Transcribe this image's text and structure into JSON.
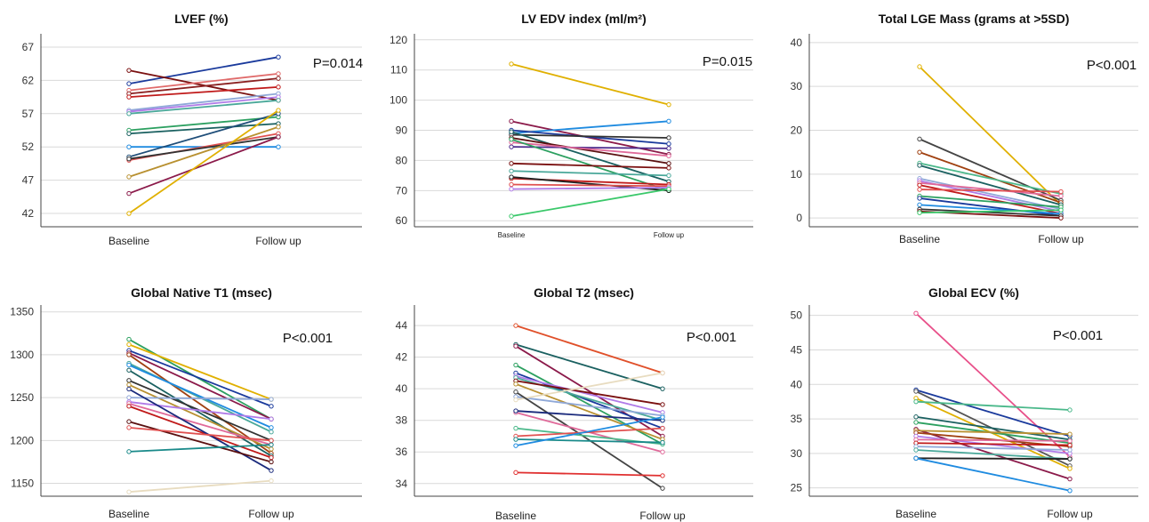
{
  "chart_data": [
    {
      "type": "line",
      "title": "LVEF (%)",
      "categories": [
        "Baseline",
        "Follow up"
      ],
      "ylim": [
        40,
        69
      ],
      "yticks": [
        42,
        47,
        52,
        57,
        62,
        67
      ],
      "grid": true,
      "annotation": "P=0.014",
      "series": [
        {
          "color": "#1a3a9c",
          "values": [
            61.5,
            65.5
          ]
        },
        {
          "color": "#7a1010",
          "values": [
            63.5,
            59.0
          ]
        },
        {
          "color": "#e06a6a",
          "values": [
            60.5,
            63.0
          ]
        },
        {
          "color": "#8b2020",
          "values": [
            60.0,
            62.3
          ]
        },
        {
          "color": "#c01a1a",
          "values": [
            59.5,
            61.0
          ]
        },
        {
          "color": "#8fa8d8",
          "values": [
            57.5,
            60.0
          ]
        },
        {
          "color": "#b07be8",
          "values": [
            57.3,
            59.5
          ]
        },
        {
          "color": "#4aa89a",
          "values": [
            57.0,
            59.0
          ]
        },
        {
          "color": "#2ca060",
          "values": [
            54.5,
            56.5
          ]
        },
        {
          "color": "#1a6060",
          "values": [
            54.0,
            55.5
          ]
        },
        {
          "color": "#1f8be0",
          "values": [
            52.0,
            52.0
          ]
        },
        {
          "color": "#e05050",
          "values": [
            50.0,
            54.0
          ]
        },
        {
          "color": "#1f4e79",
          "values": [
            50.5,
            57.0
          ]
        },
        {
          "color": "#333333",
          "values": [
            50.2,
            53.5
          ]
        },
        {
          "color": "#b89030",
          "values": [
            47.5,
            55.0
          ]
        },
        {
          "color": "#8b1a4a",
          "values": [
            45.0,
            53.5
          ]
        },
        {
          "color": "#e0b000",
          "values": [
            42.0,
            57.5
          ]
        }
      ]
    },
    {
      "type": "line",
      "title": "LV EDV index (ml/m²)",
      "categories": [
        "Baseline",
        "Follow up"
      ],
      "ylim": [
        58,
        122
      ],
      "yticks": [
        60,
        70,
        80,
        90,
        100,
        110,
        120
      ],
      "grid": true,
      "annotation": "P=0.015",
      "series": [
        {
          "color": "#e0b000",
          "values": [
            112.0,
            98.5
          ]
        },
        {
          "color": "#8b1a4a",
          "values": [
            93.0,
            82.0
          ]
        },
        {
          "color": "#1f8be0",
          "values": [
            89.0,
            93.0
          ]
        },
        {
          "color": "#1a3a9c",
          "values": [
            90.0,
            85.5
          ]
        },
        {
          "color": "#333333",
          "values": [
            88.5,
            87.5
          ]
        },
        {
          "color": "#1a6060",
          "values": [
            89.5,
            73.0
          ]
        },
        {
          "color": "#5a1010",
          "values": [
            87.5,
            79.0
          ]
        },
        {
          "color": "#4b2a8c",
          "values": [
            84.5,
            84.0
          ]
        },
        {
          "color": "#e06a9a",
          "values": [
            86.0,
            81.5
          ]
        },
        {
          "color": "#2ca060",
          "values": [
            87.0,
            70.0
          ]
        },
        {
          "color": "#7a1010",
          "values": [
            79.0,
            77.5
          ]
        },
        {
          "color": "#4aa89a",
          "values": [
            76.5,
            75.0
          ]
        },
        {
          "color": "#c01a1a",
          "values": [
            74.0,
            72.0
          ]
        },
        {
          "color": "#222222",
          "values": [
            74.5,
            70.0
          ]
        },
        {
          "color": "#e05050",
          "values": [
            72.0,
            71.5
          ]
        },
        {
          "color": "#b07be8",
          "values": [
            70.5,
            71.0
          ]
        },
        {
          "color": "#3ac86a",
          "values": [
            61.5,
            70.5
          ]
        }
      ]
    },
    {
      "type": "line",
      "title": "Total LGE Mass (grams at >5SD)",
      "categories": [
        "Baseline",
        "Follow up"
      ],
      "ylim": [
        -2,
        42
      ],
      "yticks": [
        0,
        10,
        20,
        30,
        40
      ],
      "grid": true,
      "annotation": "P<0.001",
      "series": [
        {
          "color": "#e0b000",
          "values": [
            34.5,
            3.0
          ]
        },
        {
          "color": "#444444",
          "values": [
            18.0,
            4.0
          ]
        },
        {
          "color": "#a04010",
          "values": [
            15.0,
            3.5
          ]
        },
        {
          "color": "#4ab88a",
          "values": [
            12.5,
            5.5
          ]
        },
        {
          "color": "#1a6060",
          "values": [
            12.0,
            3.0
          ]
        },
        {
          "color": "#8fa8d8",
          "values": [
            9.0,
            2.0
          ]
        },
        {
          "color": "#b07be8",
          "values": [
            8.5,
            1.5
          ]
        },
        {
          "color": "#e06a9a",
          "values": [
            8.0,
            5.0
          ]
        },
        {
          "color": "#c01a1a",
          "values": [
            7.5,
            1.0
          ]
        },
        {
          "color": "#e05050",
          "values": [
            6.5,
            6.0
          ]
        },
        {
          "color": "#2ca060",
          "values": [
            5.0,
            2.5
          ]
        },
        {
          "color": "#1a3a9c",
          "values": [
            4.5,
            0.5
          ]
        },
        {
          "color": "#1f8be0",
          "values": [
            3.0,
            1.0
          ]
        },
        {
          "color": "#333333",
          "values": [
            2.0,
            0.5
          ]
        },
        {
          "color": "#7a1010",
          "values": [
            1.5,
            0.0
          ]
        },
        {
          "color": "#3ac86a",
          "values": [
            1.2,
            1.8
          ]
        }
      ]
    },
    {
      "type": "line",
      "title": "Global Native T1 (msec)",
      "categories": [
        "Baseline",
        "Follow up"
      ],
      "ylim": [
        1135,
        1358
      ],
      "yticks": [
        1150,
        1200,
        1250,
        1300,
        1350
      ],
      "grid": true,
      "annotation": "P<0.001",
      "series": [
        {
          "color": "#2ca060",
          "values": [
            1318,
            1225
          ]
        },
        {
          "color": "#e0b000",
          "values": [
            1312,
            1248
          ]
        },
        {
          "color": "#1a3a9c",
          "values": [
            1305,
            1240
          ]
        },
        {
          "color": "#8b1a4a",
          "values": [
            1302,
            1225
          ]
        },
        {
          "color": "#a04010",
          "values": [
            1300,
            1185
          ]
        },
        {
          "color": "#4aa89a",
          "values": [
            1290,
            1210
          ]
        },
        {
          "color": "#1f8be0",
          "values": [
            1288,
            1215
          ]
        },
        {
          "color": "#1a6060",
          "values": [
            1282,
            1182
          ]
        },
        {
          "color": "#333333",
          "values": [
            1270,
            1200
          ]
        },
        {
          "color": "#b89030",
          "values": [
            1265,
            1190
          ]
        },
        {
          "color": "#8fa8d8",
          "values": [
            1250,
            1248
          ]
        },
        {
          "color": "#b07be8",
          "values": [
            1245,
            1225
          ]
        },
        {
          "color": "#e06a9a",
          "values": [
            1243,
            1195
          ]
        },
        {
          "color": "#c01a1a",
          "values": [
            1240,
            1180
          ]
        },
        {
          "color": "#1a2a7c",
          "values": [
            1260,
            1165
          ]
        },
        {
          "color": "#5a1010",
          "values": [
            1222,
            1175
          ]
        },
        {
          "color": "#e05050",
          "values": [
            1215,
            1200
          ]
        },
        {
          "color": "#1a8a8a",
          "values": [
            1187,
            1195
          ]
        },
        {
          "color": "#e8dcc0",
          "values": [
            1140,
            1153
          ]
        }
      ]
    },
    {
      "type": "line",
      "title": "Global T2 (msec)",
      "categories": [
        "Baseline",
        "Follow up"
      ],
      "ylim": [
        33.2,
        45.3
      ],
      "yticks": [
        34,
        36,
        38,
        40,
        42,
        44
      ],
      "grid": true,
      "annotation": "P<0.001",
      "series": [
        {
          "color": "#e0502a",
          "values": [
            44.0,
            41.0
          ]
        },
        {
          "color": "#1a6060",
          "values": [
            42.8,
            40.0
          ]
        },
        {
          "color": "#8b1a4a",
          "values": [
            42.7,
            37.0
          ]
        },
        {
          "color": "#2ca060",
          "values": [
            41.5,
            36.5
          ]
        },
        {
          "color": "#1a3a9c",
          "values": [
            41.0,
            37.5
          ]
        },
        {
          "color": "#b07be8",
          "values": [
            40.8,
            38.5
          ]
        },
        {
          "color": "#4aa89a",
          "values": [
            40.7,
            38.0
          ]
        },
        {
          "color": "#7a1010",
          "values": [
            40.5,
            39.0
          ]
        },
        {
          "color": "#b89030",
          "values": [
            40.3,
            36.8
          ]
        },
        {
          "color": "#8fa8d8",
          "values": [
            39.5,
            38.3
          ]
        },
        {
          "color": "#e8dcc0",
          "values": [
            39.3,
            41.0
          ]
        },
        {
          "color": "#444444",
          "values": [
            39.8,
            33.7
          ]
        },
        {
          "color": "#e06a9a",
          "values": [
            38.5,
            36.0
          ]
        },
        {
          "color": "#1a2a7c",
          "values": [
            38.6,
            38.0
          ]
        },
        {
          "color": "#4ab88a",
          "values": [
            37.5,
            36.5
          ]
        },
        {
          "color": "#e05050",
          "values": [
            37.0,
            37.5
          ]
        },
        {
          "color": "#1a8a8a",
          "values": [
            36.8,
            36.6
          ]
        },
        {
          "color": "#1f8be0",
          "values": [
            36.4,
            38.2
          ]
        },
        {
          "color": "#e03030",
          "values": [
            34.7,
            34.5
          ]
        }
      ]
    },
    {
      "type": "line",
      "title": "Global ECV (%)",
      "categories": [
        "Baseline",
        "Follow up"
      ],
      "ylim": [
        23.8,
        51.5
      ],
      "yticks": [
        25,
        30,
        35,
        40,
        45,
        50
      ],
      "grid": true,
      "annotation": "P<0.001",
      "series": [
        {
          "color": "#e8508a",
          "values": [
            50.3,
            29.5
          ]
        },
        {
          "color": "#1a3a9c",
          "values": [
            39.2,
            32.5
          ]
        },
        {
          "color": "#555555",
          "values": [
            39.0,
            28.2
          ]
        },
        {
          "color": "#e0b000",
          "values": [
            38.0,
            27.8
          ]
        },
        {
          "color": "#4ab88a",
          "values": [
            37.5,
            36.3
          ]
        },
        {
          "color": "#1a6060",
          "values": [
            35.3,
            32.0
          ]
        },
        {
          "color": "#2ca060",
          "values": [
            34.5,
            31.5
          ]
        },
        {
          "color": "#8b1a4a",
          "values": [
            33.5,
            26.3
          ]
        },
        {
          "color": "#b89030",
          "values": [
            33.3,
            32.8
          ]
        },
        {
          "color": "#a04010",
          "values": [
            33.0,
            31.0
          ]
        },
        {
          "color": "#b07be8",
          "values": [
            32.5,
            30.0
          ]
        },
        {
          "color": "#e06a9a",
          "values": [
            32.0,
            31.8
          ]
        },
        {
          "color": "#c01a1a",
          "values": [
            31.5,
            31.2
          ]
        },
        {
          "color": "#8fa8d8",
          "values": [
            31.0,
            30.5
          ]
        },
        {
          "color": "#4aa89a",
          "values": [
            30.5,
            29.2
          ]
        },
        {
          "color": "#222222",
          "values": [
            29.3,
            29.2
          ]
        },
        {
          "color": "#1f8be0",
          "values": [
            29.3,
            24.6
          ]
        }
      ]
    }
  ]
}
